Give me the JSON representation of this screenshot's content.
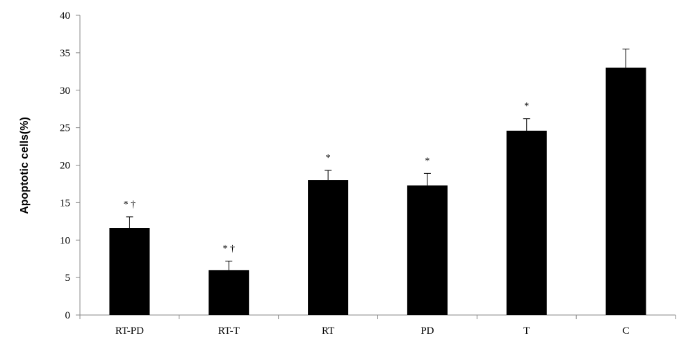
{
  "chart_data": {
    "type": "bar",
    "title": "",
    "xlabel": "",
    "ylabel": "Apoptotic cells(%)",
    "ylim": [
      0,
      40
    ],
    "yticks": [
      0,
      5,
      10,
      15,
      20,
      25,
      30,
      35,
      40
    ],
    "categories": [
      "RT-PD",
      "RT-T",
      "RT",
      "PD",
      "T",
      "C"
    ],
    "values": [
      11.6,
      6.0,
      18.0,
      17.3,
      24.6,
      33.0
    ],
    "errors": [
      1.5,
      1.2,
      1.3,
      1.6,
      1.6,
      2.5
    ],
    "annotations": [
      "* †",
      "* †",
      "*",
      "*",
      "*",
      ""
    ],
    "bar_color": "#000000",
    "grid": false,
    "legend": "none"
  }
}
